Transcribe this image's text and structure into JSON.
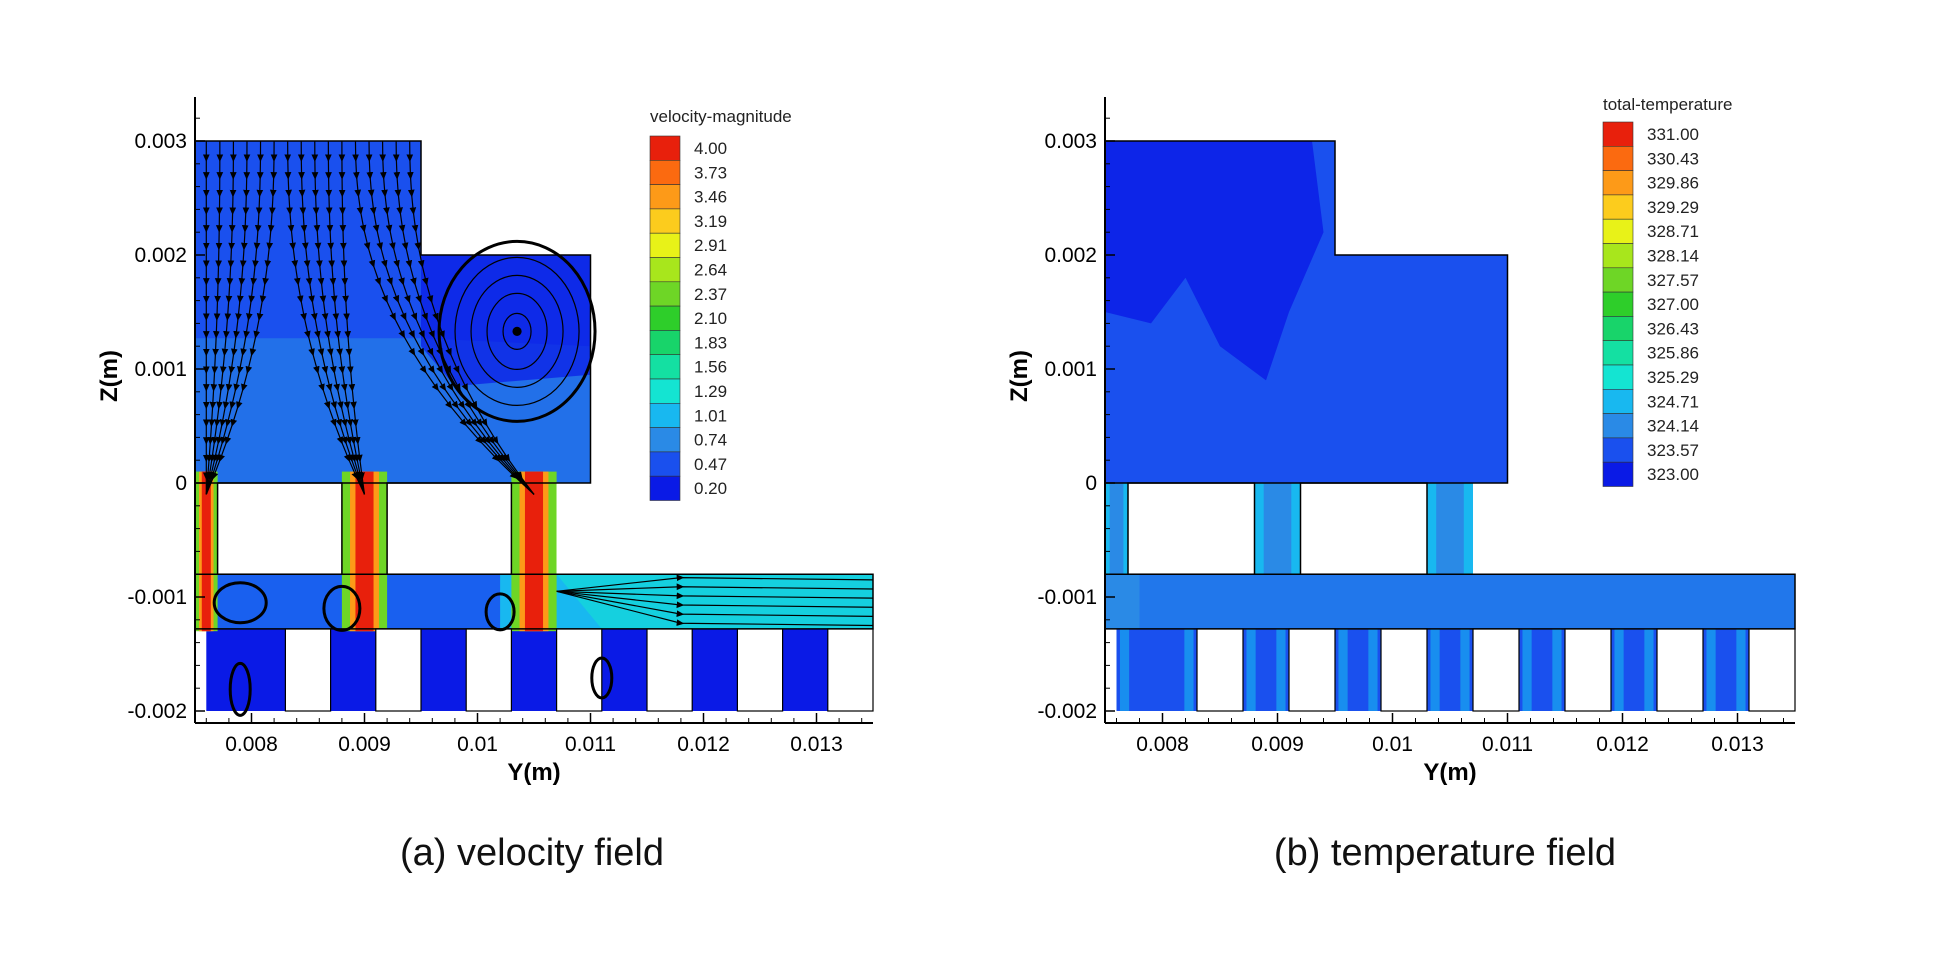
{
  "chart_data": [
    {
      "type": "heatmap",
      "title": "",
      "caption": "(a) velocity field",
      "xlabel": "Y(m)",
      "ylabel": "Z(m)",
      "xlim": [
        0.0075,
        0.0135
      ],
      "ylim": [
        -0.00205,
        0.00335
      ],
      "xticks": [
        0.008,
        0.009,
        0.01,
        0.011,
        0.012,
        0.013
      ],
      "xtick_labels": [
        "0.008",
        "0.009",
        "0.01",
        "0.011",
        "0.012",
        "0.013"
      ],
      "yticks": [
        0.003,
        0.002,
        0.001,
        0,
        -0.001,
        -0.002
      ],
      "ytick_labels": [
        "0.003",
        "0.002",
        "0.001",
        "0",
        "-0.001",
        "-0.002"
      ],
      "legend": {
        "title": "velocity-magnitude",
        "placement": "top-right",
        "levels": [
          "4.00",
          "3.73",
          "3.46",
          "3.19",
          "2.91",
          "2.64",
          "2.37",
          "2.10",
          "1.83",
          "1.56",
          "1.29",
          "1.01",
          "0.74",
          "0.47",
          "0.20"
        ],
        "colors": [
          "#e8200c",
          "#fb6a10",
          "#fd9a18",
          "#fccc1d",
          "#e8f218",
          "#a8e61c",
          "#6ed626",
          "#2ece2a",
          "#18d46a",
          "#14e0a2",
          "#14e4d2",
          "#18b8f0",
          "#2a8ae6",
          "#1a50ee",
          "#0a1ae6"
        ]
      },
      "streamlines": true,
      "background_color": "#1a50ee"
    },
    {
      "type": "heatmap",
      "title": "",
      "caption": "(b) temperature field",
      "xlabel": "Y(m)",
      "ylabel": "Z(m)",
      "xlim": [
        0.0075,
        0.0135
      ],
      "ylim": [
        -0.00205,
        0.00335
      ],
      "xticks": [
        0.008,
        0.009,
        0.01,
        0.011,
        0.012,
        0.013
      ],
      "xtick_labels": [
        "0.008",
        "0.009",
        "0.01",
        "0.011",
        "0.012",
        "0.013"
      ],
      "yticks": [
        0.003,
        0.002,
        0.001,
        0,
        -0.001,
        -0.002
      ],
      "ytick_labels": [
        "0.003",
        "0.002",
        "0.001",
        "0",
        "-0.001",
        "-0.002"
      ],
      "legend": {
        "title": "total-temperature",
        "placement": "top-right",
        "levels": [
          "331.00",
          "330.43",
          "329.86",
          "329.29",
          "328.71",
          "328.14",
          "327.57",
          "327.00",
          "326.43",
          "325.86",
          "325.29",
          "324.71",
          "324.14",
          "323.57",
          "323.00"
        ],
        "colors": [
          "#e8200c",
          "#fb6a10",
          "#fd9a18",
          "#fccc1d",
          "#e8f218",
          "#a8e61c",
          "#6ed626",
          "#2ece2a",
          "#18d46a",
          "#14e0a2",
          "#14e4d2",
          "#18b8f0",
          "#2a8ae6",
          "#1a50ee",
          "#0a1ae6"
        ]
      },
      "streamlines": false,
      "background_color": "#1a50ee"
    }
  ]
}
